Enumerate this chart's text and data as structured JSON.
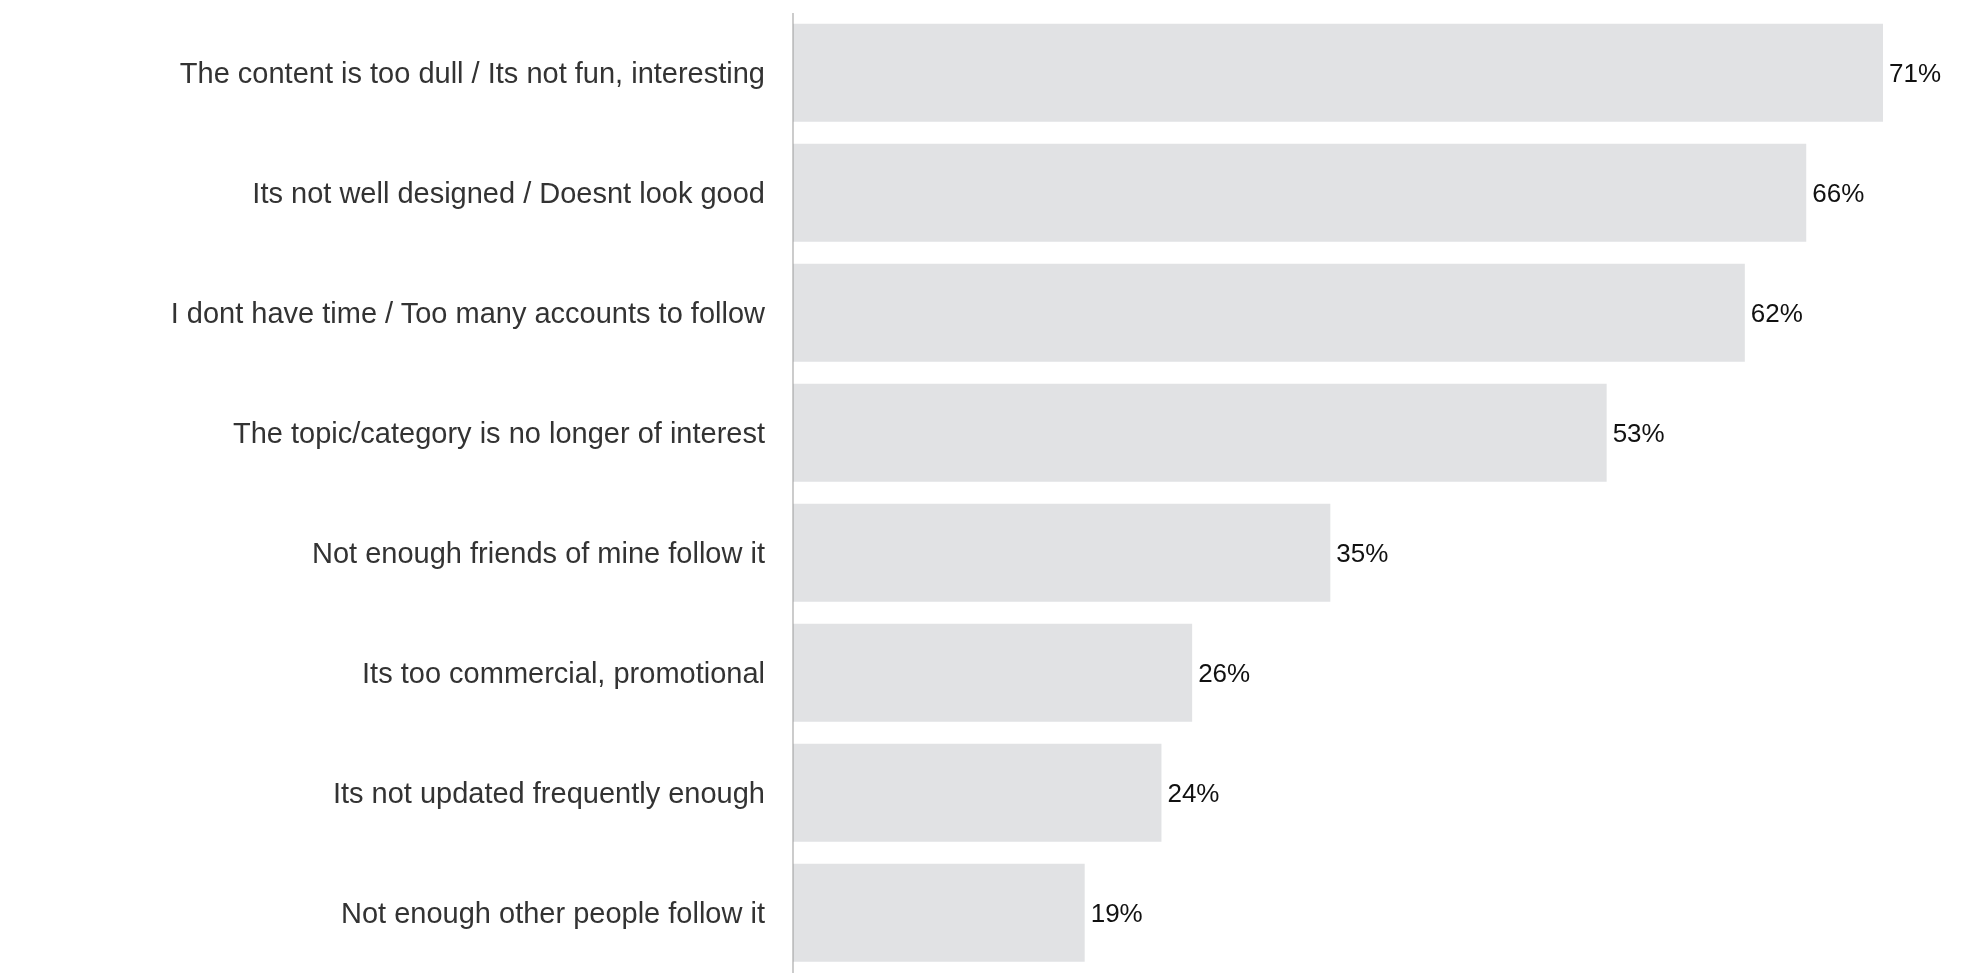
{
  "chart_data": {
    "type": "bar",
    "orientation": "horizontal",
    "categories": [
      "The content is too dull / Its not fun, interesting",
      "Its not well designed / Doesnt look good",
      "I dont have time / Too many accounts to follow",
      "The topic/category is no longer of interest",
      "Not enough friends of mine follow it",
      "Its too commercial, promotional",
      "Its not updated frequently enough",
      "Not enough other people follow it"
    ],
    "values": [
      71,
      66,
      62,
      53,
      35,
      26,
      24,
      19
    ],
    "value_labels": [
      "71%",
      "66%",
      "62%",
      "53%",
      "35%",
      "26%",
      "24%",
      "19%"
    ],
    "color": "#e1e2e4",
    "legend": false,
    "grid": false
  }
}
